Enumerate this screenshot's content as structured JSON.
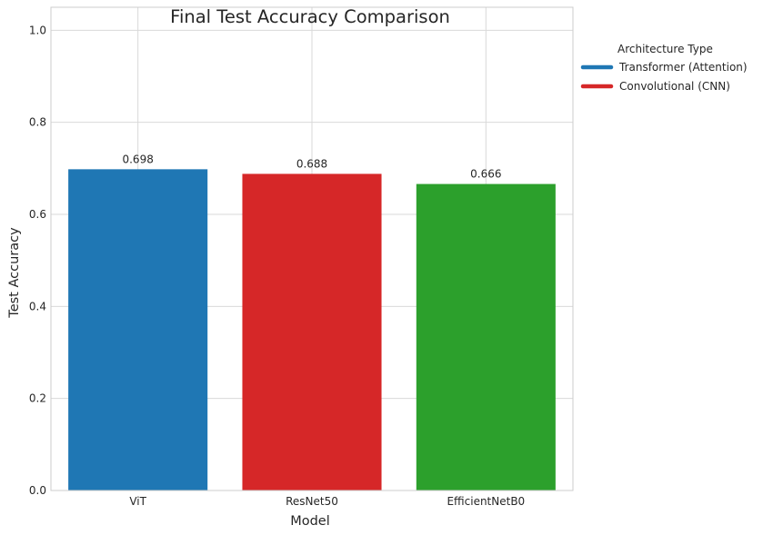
{
  "chart_data": {
    "type": "bar",
    "title": "Final Test Accuracy Comparison",
    "xlabel": "Model",
    "ylabel": "Test Accuracy",
    "categories": [
      "ViT",
      "ResNet50",
      "EfficientNetB0"
    ],
    "values": [
      0.698,
      0.688,
      0.666
    ],
    "value_labels": [
      "0.698",
      "0.688",
      "0.666"
    ],
    "bar_colors": [
      "#1f77b4",
      "#d62728",
      "#2ca02c"
    ],
    "ylim": [
      0,
      1.05
    ],
    "yticks": [
      0.0,
      0.2,
      0.4,
      0.6,
      0.8,
      1.0
    ],
    "ytick_labels": [
      "0.0",
      "0.2",
      "0.4",
      "0.6",
      "0.8",
      "1.0"
    ],
    "grid": true,
    "legend": {
      "title": "Architecture Type",
      "placement": "outside-top-right",
      "entries": [
        {
          "label": "Transformer (Attention)",
          "color": "#1f77b4"
        },
        {
          "label": "Convolutional (CNN)",
          "color": "#d62728"
        }
      ]
    }
  }
}
